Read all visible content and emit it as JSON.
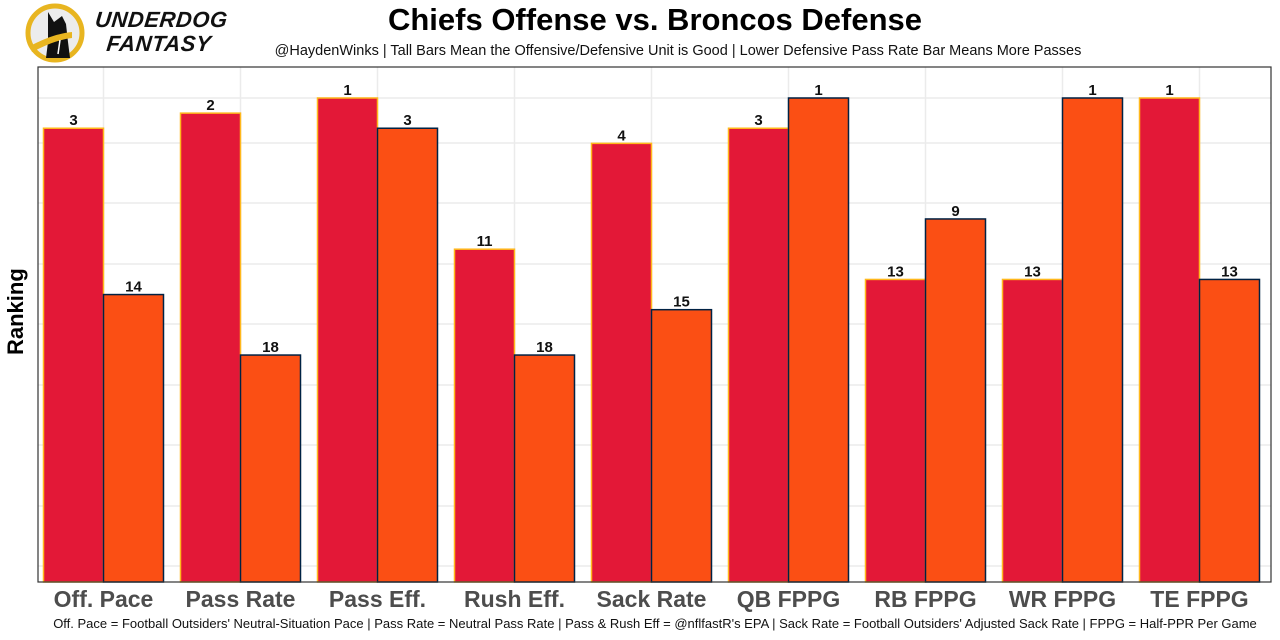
{
  "logo": {
    "line1": "UNDERDOG",
    "line2": "FANTASY"
  },
  "chart_data": {
    "type": "bar",
    "title": "Chiefs Offense vs. Broncos Defense",
    "subtitle": "@HaydenWinks | Tall Bars Mean the Offensive/Defensive Unit is Good | Lower Defensive Pass Rate Bar Means More Passes",
    "xlabel": "",
    "ylabel": "Ranking",
    "caption": "Off. Pace = Football Outsiders' Neutral-Situation Pace | Pass Rate = Neutral Pass Rate | Pass & Rush Eff = @nflfastR's EPA | Sack Rate = Football Outsiders' Adjusted Sack Rate | FPPG = Half-PPR Per Game",
    "categories": [
      "Off. Pace",
      "Pass Rate",
      "Pass Eff.",
      "Rush Eff.",
      "Sack Rate",
      "QB FPPG",
      "RB FPPG",
      "WR FPPG",
      "TE FPPG"
    ],
    "series": [
      {
        "name": "Chiefs Offense",
        "values": [
          3,
          2,
          1,
          11,
          4,
          3,
          13,
          13,
          1
        ],
        "color": "#E31837",
        "edge": "#FFB81C"
      },
      {
        "name": "Broncos Defense",
        "values": [
          14,
          18,
          3,
          18,
          15,
          1,
          9,
          1,
          13
        ],
        "color": "#FB4F14",
        "edge": "#002244"
      }
    ],
    "ylim_rank": [
      1,
      32
    ],
    "y_inverted": true,
    "yticks_shown": false,
    "grid": true,
    "legend": "none"
  }
}
